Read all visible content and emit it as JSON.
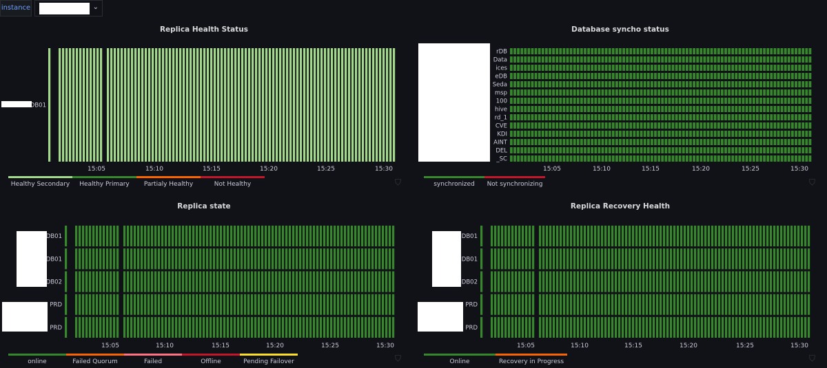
{
  "variable": {
    "label": "instance",
    "selected": ""
  },
  "panels": [
    {
      "id": "replica-health-status",
      "title": "Replica Health Status",
      "rows": [
        {
          "label": "DB01"
        }
      ],
      "time_ticks": [
        "15:05",
        "15:10",
        "15:15",
        "15:20",
        "15:25",
        "15:30"
      ],
      "legend": [
        {
          "label": "Healthy Secondary",
          "color": "#a3d98b"
        },
        {
          "label": "Healthy Primary",
          "color": "#37872d"
        },
        {
          "label": "Partialy Healthy",
          "color": "#fa6400"
        },
        {
          "label": "Not Healthy",
          "color": "#c4162a"
        }
      ],
      "cell_color": "#a3d98b"
    },
    {
      "id": "database-syncho-status",
      "title": "Database syncho status",
      "rows": [
        {
          "label": "rDB"
        },
        {
          "label": "Data"
        },
        {
          "label": "ices"
        },
        {
          "label": "eDB"
        },
        {
          "label": "Seda"
        },
        {
          "label": "msp"
        },
        {
          "label": "100"
        },
        {
          "label": "hive"
        },
        {
          "label": "rd_1"
        },
        {
          "label": "CVE"
        },
        {
          "label": "KDI"
        },
        {
          "label": "AINT"
        },
        {
          "label": "DEL"
        },
        {
          "label": "_SC"
        }
      ],
      "time_ticks": [
        "15:05",
        "15:10",
        "15:15",
        "15:20",
        "15:25",
        "15:30"
      ],
      "legend": [
        {
          "label": "synchronized",
          "color": "#37872d"
        },
        {
          "label": "Not synchronizing",
          "color": "#c4162a"
        }
      ],
      "cell_color": "#37872d"
    },
    {
      "id": "replica-state",
      "title": "Replica state",
      "rows": [
        {
          "label": "DB01"
        },
        {
          "label": "DB01"
        },
        {
          "label": "DB02"
        },
        {
          "label": "PRD"
        },
        {
          "label": "PRD"
        }
      ],
      "time_ticks": [
        "15:05",
        "15:10",
        "15:15",
        "15:20",
        "15:25",
        "15:30"
      ],
      "legend": [
        {
          "label": "online",
          "color": "#37872d"
        },
        {
          "label": "Failed Quorum",
          "color": "#fa6400"
        },
        {
          "label": "Failed",
          "color": "#ff7383"
        },
        {
          "label": "Offline",
          "color": "#c4162a"
        },
        {
          "label": "Pending Failover",
          "color": "#fade2a"
        }
      ],
      "cell_color": "#37872d"
    },
    {
      "id": "replica-recovery-health",
      "title": "Replica Recovery Health",
      "rows": [
        {
          "label": "DB01"
        },
        {
          "label": "DB01"
        },
        {
          "label": "DB02"
        },
        {
          "label": "PRD"
        },
        {
          "label": "PRD"
        }
      ],
      "time_ticks": [
        "15:05",
        "15:10",
        "15:15",
        "15:20",
        "15:25",
        "15:30"
      ],
      "legend": [
        {
          "label": "Online",
          "color": "#37872d"
        },
        {
          "label": "Recovery in Progress",
          "color": "#fa6400"
        }
      ],
      "cell_color": "#37872d"
    }
  ]
}
